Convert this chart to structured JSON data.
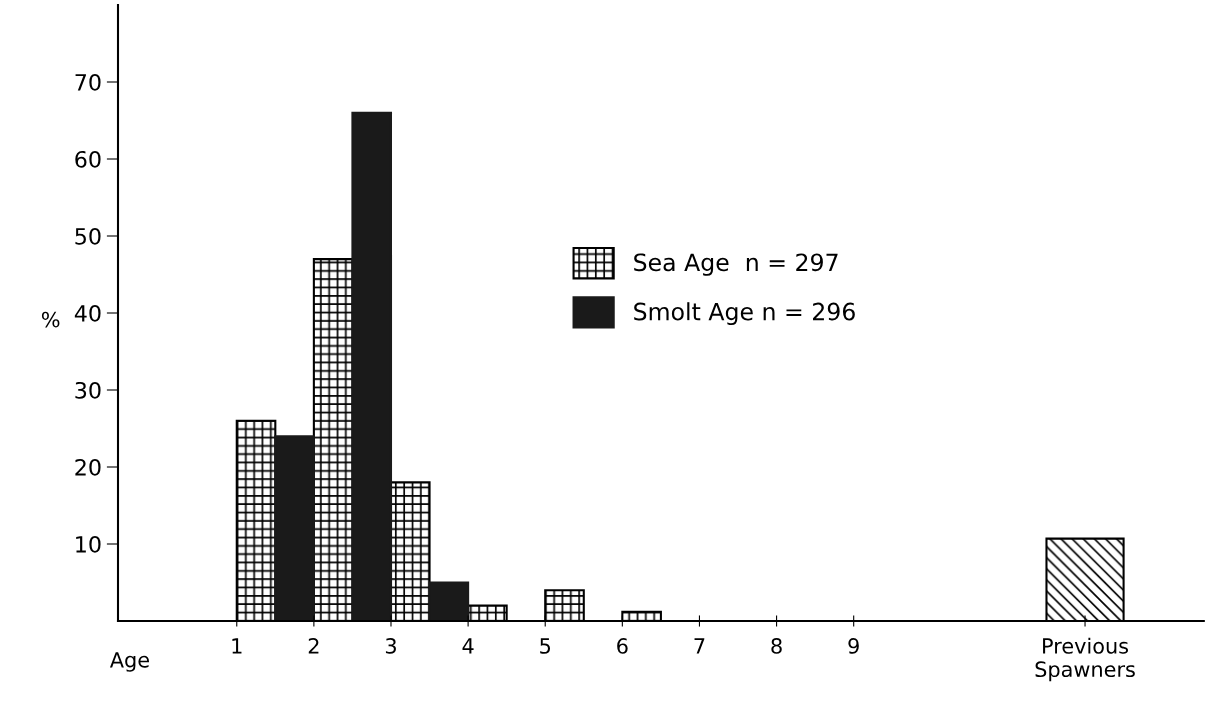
{
  "chart_data": {
    "type": "bar",
    "xlabel": "Age",
    "ylabel": "%",
    "series": [
      {
        "name": "Sea Age  n = 297",
        "color": "#000000",
        "x": [
          1.25,
          2.25,
          3.25,
          4.25,
          5.25,
          6.25,
          7.25,
          8.25,
          9.25
        ],
        "values": [
          26,
          47,
          18,
          2,
          4,
          1.2,
          0,
          0,
          0
        ]
      },
      {
        "name": "Smolt Age n = 296",
        "color": "#1a1a1a",
        "x": [
          1.75,
          2.75,
          3.75
        ],
        "values": [
          24,
          66,
          5
        ]
      },
      {
        "color": "#000000",
        "x": [
          12
        ],
        "values": [
          10.7
        ]
      }
    ],
    "xlim": [
      -0.54,
      13.54
    ],
    "xticks": [
      1,
      2,
      3,
      4,
      5,
      6,
      7,
      8,
      9,
      {
        "value": 12,
        "label": "Previous\nSpawners"
      }
    ],
    "ylim": [
      0,
      80
    ],
    "yticks": [
      10,
      20,
      30,
      40,
      50,
      60,
      70
    ],
    "grid": false,
    "legend": "center"
  }
}
